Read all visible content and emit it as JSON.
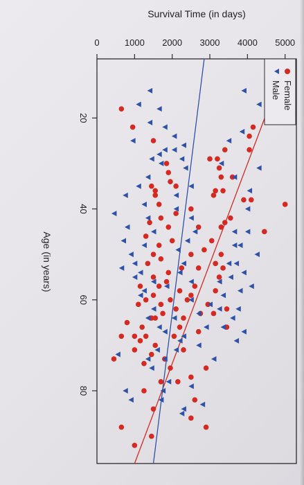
{
  "chart_data": {
    "type": "scatter",
    "title": "",
    "xlabel": "Age (in years)",
    "ylabel": "Survival Time (in days)",
    "x_ticks": [
      "20",
      "40",
      "60",
      "80"
    ],
    "y_ticks": [
      "0",
      "1000",
      "2000",
      "3000",
      "4000",
      "5000"
    ],
    "xlim": [
      7,
      96
    ],
    "ylim": [
      0,
      5300
    ],
    "orientation": "rotated-90",
    "legend_position": "top-right",
    "colors": {
      "Female": "#d42a22",
      "Male": "#2e52a8"
    },
    "series": [
      {
        "name": "Female",
        "marker": "circle",
        "points": [
          [
            22,
            4150
          ],
          [
            24,
            4050
          ],
          [
            27,
            4050
          ],
          [
            33,
            3300
          ],
          [
            33,
            3600
          ],
          [
            38,
            3900
          ],
          [
            38,
            4100
          ],
          [
            39,
            5000
          ],
          [
            45,
            4450
          ],
          [
            27,
            3400
          ],
          [
            29,
            3200
          ],
          [
            29,
            3000
          ],
          [
            31,
            3250
          ],
          [
            36,
            3150
          ],
          [
            36,
            3350
          ],
          [
            37,
            3100
          ],
          [
            42,
            3550
          ],
          [
            43,
            3400
          ],
          [
            44,
            3300
          ],
          [
            47,
            3050
          ],
          [
            49,
            2850
          ],
          [
            50,
            3300
          ],
          [
            52,
            3150
          ],
          [
            53,
            3350
          ],
          [
            55,
            3250
          ],
          [
            58,
            3150
          ],
          [
            62,
            3450
          ],
          [
            63,
            3100
          ],
          [
            66,
            3450
          ],
          [
            75,
            2900
          ],
          [
            82,
            2600
          ],
          [
            86,
            2500
          ],
          [
            88,
            2900
          ],
          [
            61,
            2950
          ],
          [
            63,
            2750
          ],
          [
            67,
            2700
          ],
          [
            57,
            2600
          ],
          [
            59,
            2500
          ],
          [
            58,
            2200
          ],
          [
            60,
            2400
          ],
          [
            62,
            2100
          ],
          [
            64,
            2300
          ],
          [
            66,
            2200
          ],
          [
            71,
            2300
          ],
          [
            68,
            2050
          ],
          [
            73,
            1800
          ],
          [
            75,
            1950
          ],
          [
            78,
            1700
          ],
          [
            70,
            1550
          ],
          [
            72,
            1450
          ],
          [
            68,
            1300
          ],
          [
            64,
            1450
          ],
          [
            61,
            1700
          ],
          [
            56,
            1850
          ],
          [
            55,
            1500
          ],
          [
            52,
            1350
          ],
          [
            50,
            1500
          ],
          [
            48,
            1650
          ],
          [
            46,
            1300
          ],
          [
            44,
            1900
          ],
          [
            43,
            1400
          ],
          [
            41,
            2100
          ],
          [
            39,
            1650
          ],
          [
            37,
            1550
          ],
          [
            35,
            2100
          ],
          [
            34,
            1950
          ],
          [
            36,
            1550
          ],
          [
            32,
            1900
          ],
          [
            30,
            1850
          ],
          [
            25,
            1500
          ],
          [
            22,
            950
          ],
          [
            18,
            650
          ],
          [
            35,
            1450
          ],
          [
            42,
            1700
          ],
          [
            47,
            2000
          ],
          [
            51,
            1700
          ],
          [
            53,
            2250
          ],
          [
            54,
            1900
          ],
          [
            57,
            1150
          ],
          [
            59,
            1500
          ],
          [
            60,
            1300
          ],
          [
            63,
            1750
          ],
          [
            64,
            1550
          ],
          [
            66,
            1200
          ],
          [
            68,
            1000
          ],
          [
            69,
            1150
          ],
          [
            73,
            450
          ],
          [
            80,
            1250
          ],
          [
            84,
            1500
          ],
          [
            88,
            650
          ],
          [
            90,
            1450
          ],
          [
            92,
            1000
          ],
          [
            40,
            2500
          ],
          [
            44,
            2700
          ],
          [
            50,
            2500
          ],
          [
            53,
            2700
          ],
          [
            57,
            1650
          ],
          [
            60,
            1950
          ],
          [
            65,
            800
          ],
          [
            68,
            650
          ],
          [
            61,
            1100
          ],
          [
            71,
            1000
          ],
          [
            74,
            1250
          ],
          [
            78,
            2150
          ],
          [
            77,
            2500
          ]
        ]
      },
      {
        "name": "Male",
        "marker": "triangle",
        "points": [
          [
            14,
            3900
          ],
          [
            17,
            4300
          ],
          [
            23,
            3850
          ],
          [
            25,
            3500
          ],
          [
            30,
            3300
          ],
          [
            31,
            4300
          ],
          [
            33,
            3650
          ],
          [
            36,
            4050
          ],
          [
            40,
            4000
          ],
          [
            45,
            4000
          ],
          [
            48,
            3800
          ],
          [
            50,
            4250
          ],
          [
            52,
            3700
          ],
          [
            54,
            3900
          ],
          [
            57,
            4100
          ],
          [
            62,
            3750
          ],
          [
            64,
            3600
          ],
          [
            67,
            3900
          ],
          [
            69,
            3700
          ],
          [
            73,
            3100
          ],
          [
            79,
            2500
          ],
          [
            83,
            2800
          ],
          [
            45,
            3650
          ],
          [
            48,
            3650
          ],
          [
            52,
            3500
          ],
          [
            55,
            3550
          ],
          [
            58,
            3800
          ],
          [
            56,
            3250
          ],
          [
            59,
            3350
          ],
          [
            62,
            3250
          ],
          [
            66,
            3350
          ],
          [
            61,
            3000
          ],
          [
            63,
            2700
          ],
          [
            66,
            2900
          ],
          [
            68,
            2300
          ],
          [
            70,
            2700
          ],
          [
            60,
            2500
          ],
          [
            56,
            2500
          ],
          [
            54,
            2200
          ],
          [
            52,
            2300
          ],
          [
            49,
            2150
          ],
          [
            47,
            2400
          ],
          [
            45,
            2600
          ],
          [
            42,
            2500
          ],
          [
            40,
            2100
          ],
          [
            37,
            2100
          ],
          [
            35,
            2500
          ],
          [
            31,
            2350
          ],
          [
            29,
            2250
          ],
          [
            27,
            2050
          ],
          [
            22,
            1800
          ],
          [
            25,
            950
          ],
          [
            21,
            1400
          ],
          [
            18,
            1650
          ],
          [
            14,
            1400
          ],
          [
            17,
            1100
          ],
          [
            35,
            1100
          ],
          [
            37,
            750
          ],
          [
            41,
            450
          ],
          [
            44,
            800
          ],
          [
            48,
            1250
          ],
          [
            50,
            900
          ],
          [
            53,
            650
          ],
          [
            55,
            1000
          ],
          [
            58,
            1250
          ],
          [
            59,
            1150
          ],
          [
            62,
            1500
          ],
          [
            64,
            1350
          ],
          [
            64,
            2050
          ],
          [
            66,
            1650
          ],
          [
            67,
            1800
          ],
          [
            69,
            2200
          ],
          [
            71,
            2100
          ],
          [
            71,
            1600
          ],
          [
            73,
            1800
          ],
          [
            73,
            1350
          ],
          [
            75,
            1450
          ],
          [
            78,
            1900
          ],
          [
            80,
            1750
          ],
          [
            82,
            1700
          ],
          [
            84,
            2300
          ],
          [
            85,
            2250
          ],
          [
            47,
            700
          ],
          [
            52,
            1000
          ],
          [
            54,
            1150
          ],
          [
            56,
            1500
          ],
          [
            57,
            1850
          ],
          [
            42,
            1350
          ],
          [
            45,
            1500
          ],
          [
            39,
            1250
          ],
          [
            33,
            1350
          ],
          [
            29,
            1450
          ],
          [
            24,
            2050
          ],
          [
            28,
            1650
          ],
          [
            30,
            1700
          ],
          [
            26,
            2300
          ],
          [
            27,
            1800
          ],
          [
            72,
            550
          ],
          [
            80,
            750
          ],
          [
            82,
            900
          ]
        ]
      }
    ],
    "fit_lines": [
      {
        "series": "Female",
        "color": "#d42a22",
        "from": [
          7,
          5050
        ],
        "to": [
          96,
          1000
        ]
      },
      {
        "series": "Male",
        "color": "#2e52a8",
        "from": [
          7,
          2850
        ],
        "to": [
          96,
          1500
        ]
      }
    ]
  }
}
